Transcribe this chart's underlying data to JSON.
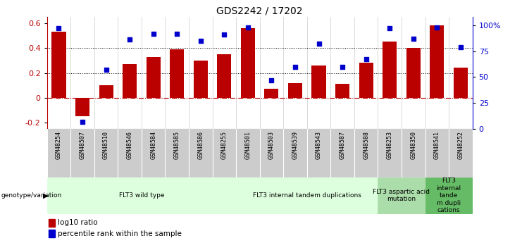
{
  "title": "GDS2242 / 17202",
  "samples": [
    "GSM48254",
    "GSM48507",
    "GSM48510",
    "GSM48546",
    "GSM48584",
    "GSM48585",
    "GSM48586",
    "GSM48255",
    "GSM48501",
    "GSM48503",
    "GSM48539",
    "GSM48543",
    "GSM48587",
    "GSM48588",
    "GSM48253",
    "GSM48350",
    "GSM48541",
    "GSM48252"
  ],
  "log10_ratio": [
    0.53,
    -0.15,
    0.1,
    0.27,
    0.33,
    0.39,
    0.3,
    0.35,
    0.56,
    0.07,
    0.12,
    0.26,
    0.11,
    0.28,
    0.45,
    0.4,
    0.58,
    0.24
  ],
  "percentile_rank": [
    97,
    7,
    57,
    86,
    92,
    92,
    85,
    91,
    98,
    47,
    60,
    82,
    60,
    67,
    97,
    87,
    98,
    79
  ],
  "bar_color": "#bb0000",
  "dot_color": "#0000cc",
  "groups": [
    {
      "label": "FLT3 wild type",
      "start": 0,
      "end": 7,
      "color": "#ddffdd"
    },
    {
      "label": "FLT3 internal tandem duplications",
      "start": 8,
      "end": 13,
      "color": "#ddffdd"
    },
    {
      "label": "FLT3 aspartic acid\nmutation",
      "start": 14,
      "end": 15,
      "color": "#aaddaa"
    },
    {
      "label": "FLT3\ninternal\ntande\nm dupli\ncations",
      "start": 16,
      "end": 17,
      "color": "#66bb66"
    }
  ],
  "ylim_left": [
    -0.25,
    0.65
  ],
  "ylim_right": [
    0,
    108
  ],
  "yticks_left": [
    -0.2,
    0.0,
    0.2,
    0.4,
    0.6
  ],
  "ytick_labels_left": [
    "-0.2",
    "0",
    "0.2",
    "0.4",
    "0.6"
  ],
  "yticks_right": [
    0,
    25,
    50,
    75,
    100
  ],
  "ytick_labels_right": [
    "0",
    "25",
    "50",
    "75",
    "100%"
  ],
  "hlines": [
    0.2,
    0.4
  ],
  "zero_line": 0.0,
  "background_color": "#ffffff"
}
